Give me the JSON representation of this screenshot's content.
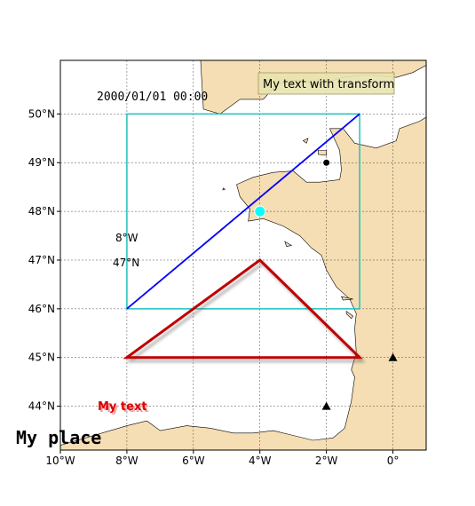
{
  "map": {
    "bounds": {
      "lon_min": -10,
      "lon_max": 1,
      "lat_min": 43.1,
      "lat_max": 51.1
    },
    "timestamp": "2000/01/01 00:00",
    "transform_box_text": "My text with transform",
    "lon_label": "8°W",
    "lat_label": "47°N",
    "my_text": "My text",
    "my_place": "My place",
    "x_ticks": [
      {
        "lon": -10,
        "label": "10°W"
      },
      {
        "lon": -8,
        "label": "8°W"
      },
      {
        "lon": -6,
        "label": "6°W"
      },
      {
        "lon": -4,
        "label": "4°W"
      },
      {
        "lon": -2,
        "label": "2°W"
      },
      {
        "lon": 0,
        "label": "0°"
      }
    ],
    "y_ticks": [
      {
        "lat": 44,
        "label": "44°N"
      },
      {
        "lat": 45,
        "label": "45°N"
      },
      {
        "lat": 46,
        "label": "46°N"
      },
      {
        "lat": 47,
        "label": "47°N"
      },
      {
        "lat": 48,
        "label": "48°N"
      },
      {
        "lat": 49,
        "label": "49°N"
      },
      {
        "lat": 50,
        "label": "50°N"
      }
    ],
    "rectangle": {
      "lon_min": -8,
      "lon_max": -1,
      "lat_min": 46,
      "lat_max": 50,
      "color": "#20c0c0"
    },
    "diagonal": {
      "from": [
        -8,
        46
      ],
      "to": [
        -1,
        50
      ],
      "color": "#0000ff"
    },
    "triangle": {
      "points": [
        [
          -8,
          45
        ],
        [
          -4,
          47
        ],
        [
          -1,
          45
        ]
      ],
      "color": "#c00000"
    },
    "markers": [
      {
        "lon": -4,
        "lat": 48,
        "shape": "circle-large",
        "color": "#00ffff"
      },
      {
        "lon": -2,
        "lat": 49,
        "shape": "dot",
        "color": "#000000"
      },
      {
        "lon": 0,
        "lat": 45,
        "shape": "triangle",
        "color": "#000000"
      },
      {
        "lon": -2,
        "lat": 44,
        "shape": "triangle",
        "color": "#000000"
      }
    ],
    "colors": {
      "land": "#f5deb3",
      "coast": "#000000",
      "grid": "#000000",
      "text_box": "#e8e4b0"
    }
  }
}
